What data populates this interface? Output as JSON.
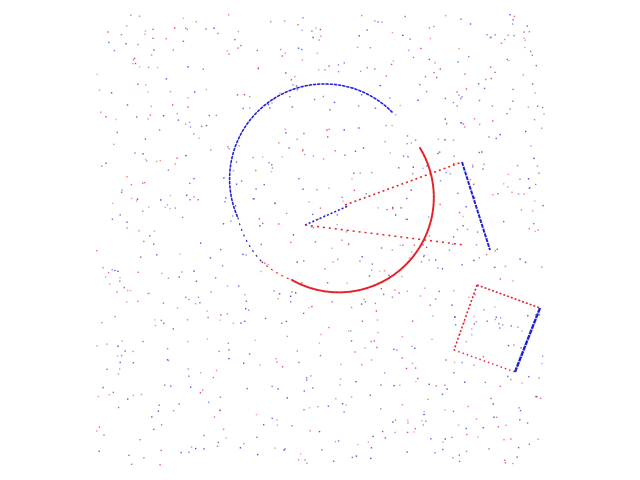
{
  "canvas": {
    "background": "#ffffff"
  },
  "colors": {
    "red": "#e8202a",
    "blue": "#2020d8",
    "noise_red": "#e23a4a",
    "noise_blue": "#3a3ae0"
  },
  "noise": {
    "count": 900,
    "seed": 7
  }
}
